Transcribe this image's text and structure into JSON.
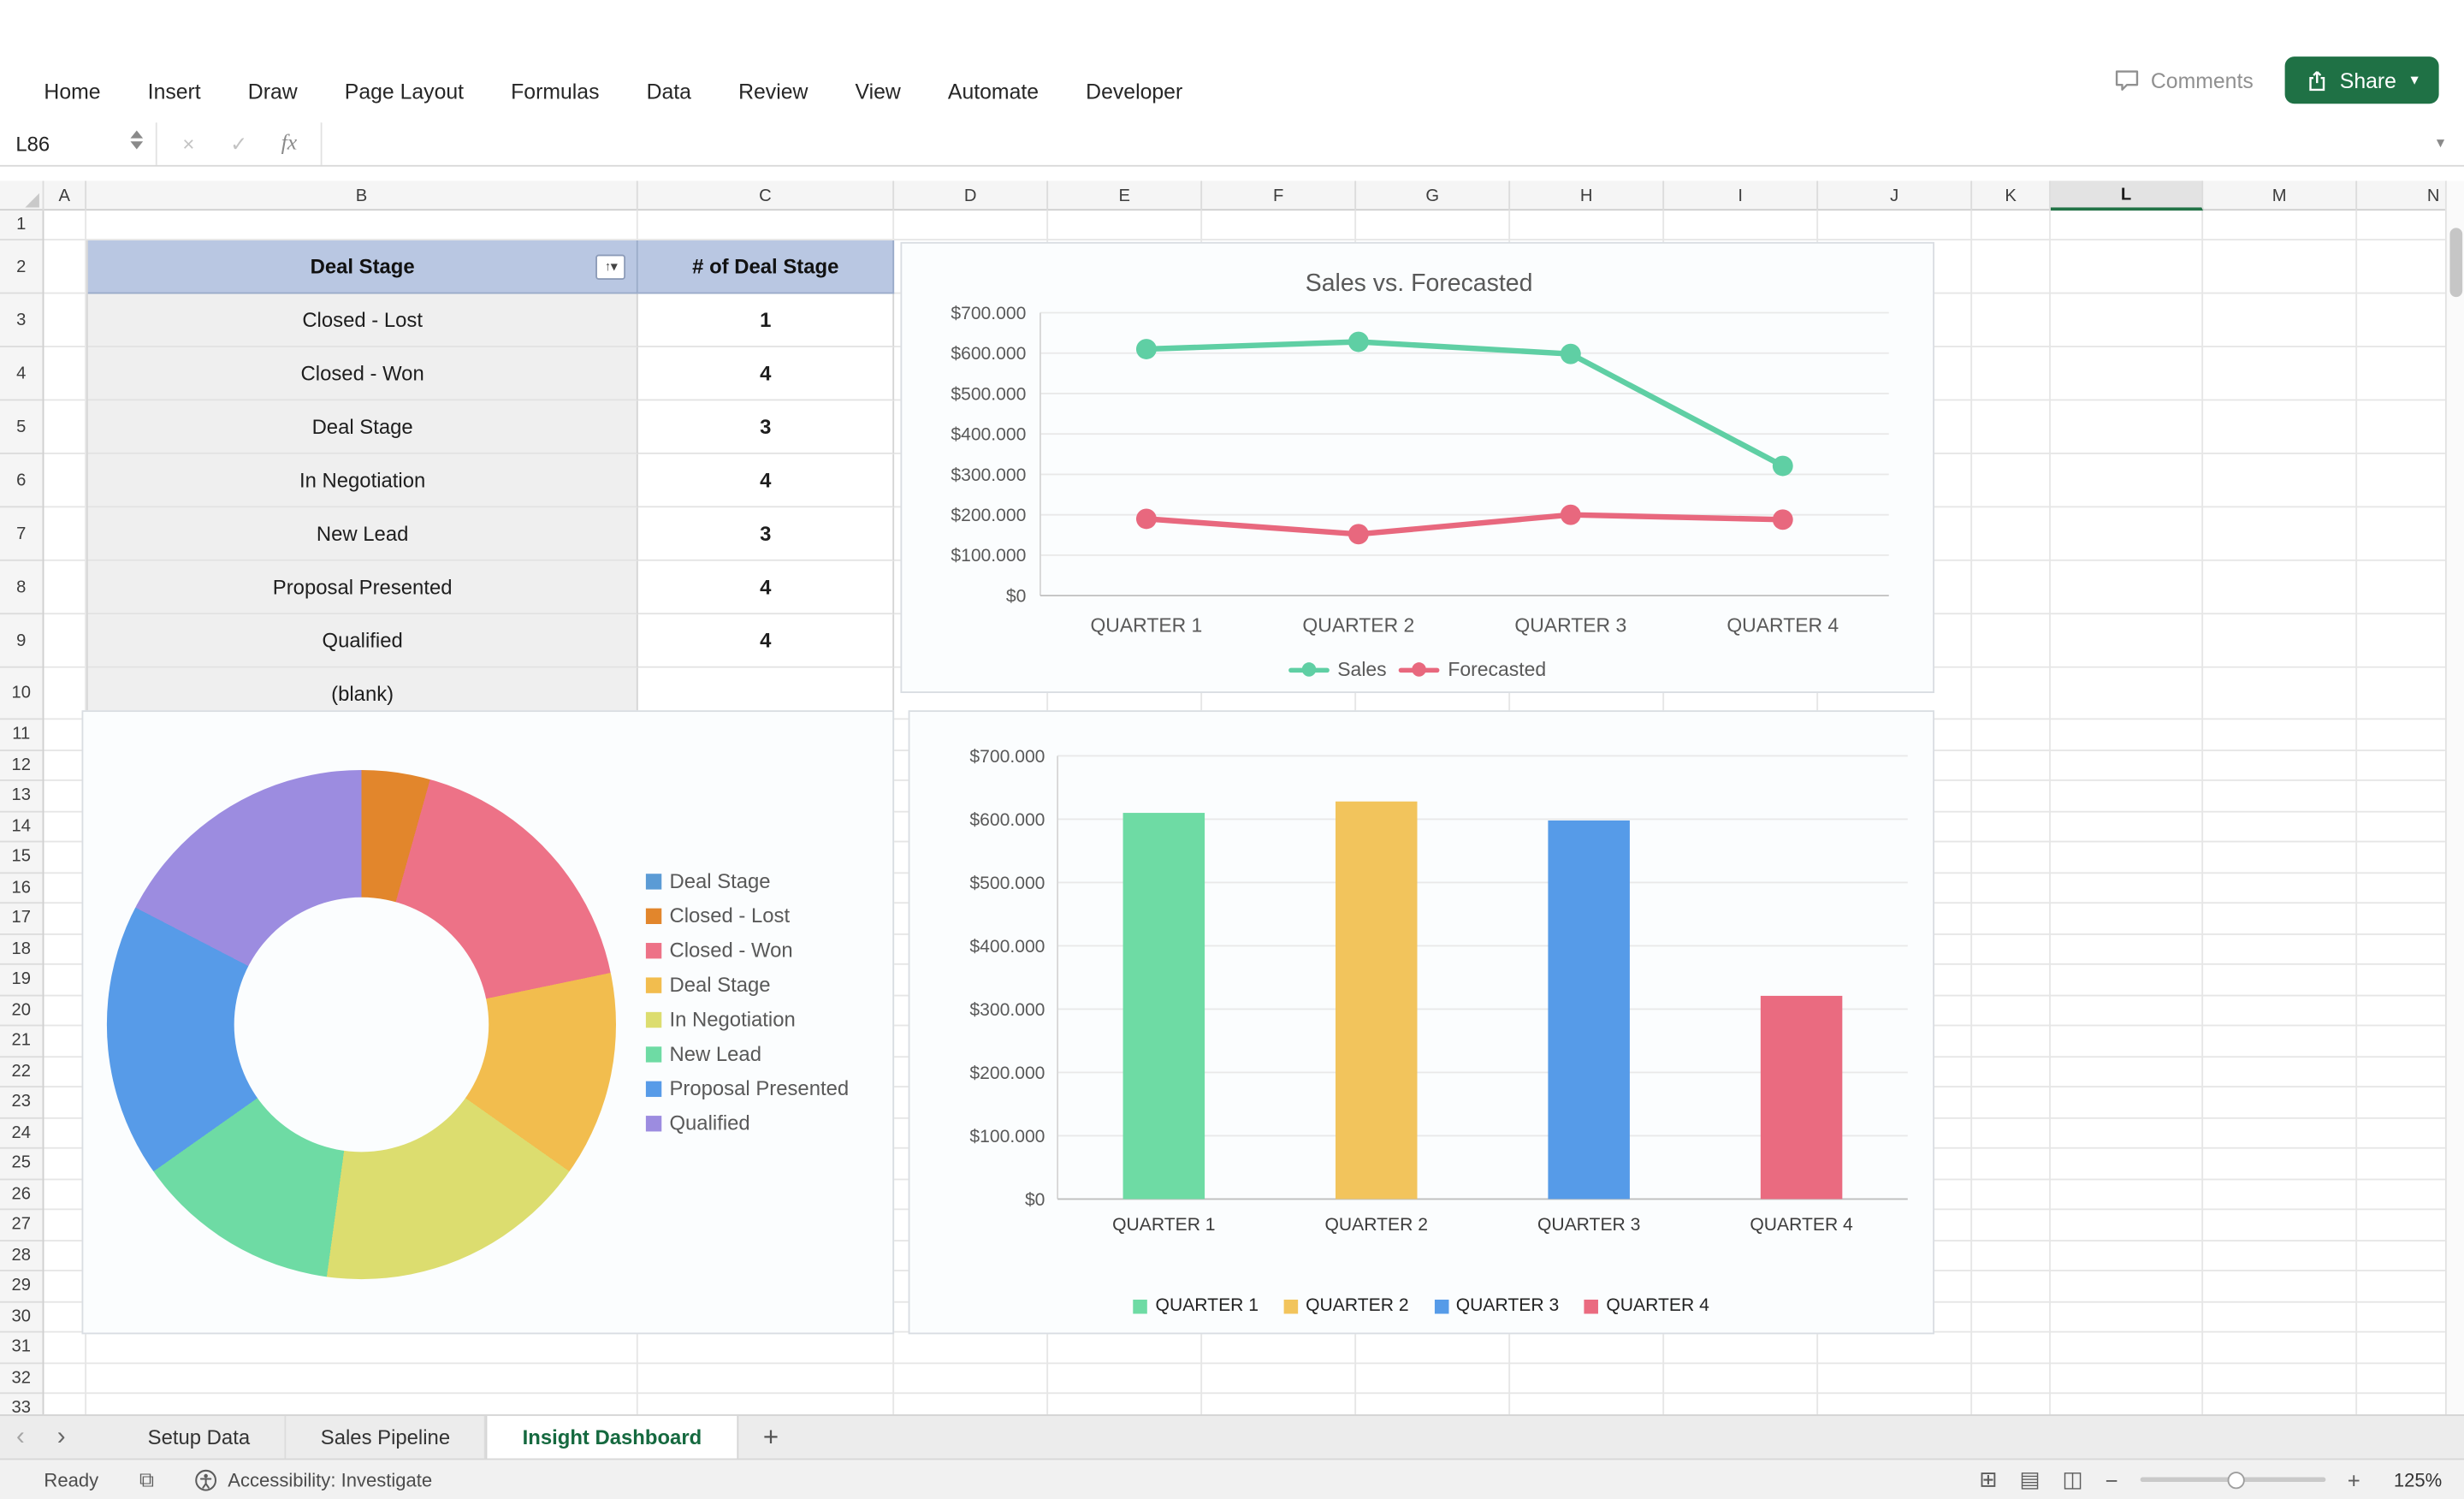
{
  "ribbon": {
    "tabs": [
      "Home",
      "Insert",
      "Draw",
      "Page Layout",
      "Formulas",
      "Data",
      "Review",
      "View",
      "Automate",
      "Developer"
    ],
    "comments_label": "Comments",
    "share_label": "Share"
  },
  "formula_bar": {
    "name_box": "L86",
    "fx_label": "fx"
  },
  "grid": {
    "columns": [
      "A",
      "B",
      "C",
      "D",
      "E",
      "F",
      "G",
      "H",
      "I",
      "J",
      "K",
      "L",
      "M",
      "N"
    ],
    "selected_column": "L",
    "row_count": 33
  },
  "pivot_table": {
    "headers": [
      "Deal Stage",
      "# of Deal Stage"
    ],
    "rows": [
      {
        "label": "Closed - Lost",
        "value": "1"
      },
      {
        "label": "Closed - Won",
        "value": "4"
      },
      {
        "label": "Deal Stage",
        "value": "3"
      },
      {
        "label": "In Negotiation",
        "value": "4"
      },
      {
        "label": "New Lead",
        "value": "3"
      },
      {
        "label": "Proposal Presented",
        "value": "4"
      },
      {
        "label": "Qualified",
        "value": "4"
      },
      {
        "label": "(blank)",
        "value": ""
      }
    ]
  },
  "chart_data": [
    {
      "type": "line",
      "title": "Sales vs. Forecasted",
      "categories": [
        "QUARTER 1",
        "QUARTER 2",
        "QUARTER 3",
        "QUARTER 4"
      ],
      "series": [
        {
          "name": "Sales",
          "color": "#5FCFA4",
          "values": [
            610000,
            628000,
            598000,
            321000
          ]
        },
        {
          "name": "Forecasted",
          "color": "#E8687E",
          "values": [
            190000,
            152000,
            200000,
            188000
          ]
        }
      ],
      "ylim": [
        0,
        700000
      ],
      "ytick_labels": [
        "$0",
        "$100.000",
        "$200.000",
        "$300.000",
        "$400.000",
        "$500.000",
        "$600.000",
        "$700.000"
      ],
      "legend_position": "bottom",
      "grid": true
    },
    {
      "type": "pie",
      "subtype": "donut",
      "title": "",
      "slices": [
        {
          "label": "Deal Stage",
          "value": 0,
          "color": "#5B9BD5"
        },
        {
          "label": "Closed - Lost",
          "value": 1,
          "color": "#E2862C"
        },
        {
          "label": "Closed - Won",
          "value": 4,
          "color": "#ED7287"
        },
        {
          "label": "Deal Stage",
          "value": 3,
          "color": "#F2BD4E"
        },
        {
          "label": "In Negotiation",
          "value": 4,
          "color": "#DCDD6F"
        },
        {
          "label": "New Lead",
          "value": 3,
          "color": "#6EDBA4"
        },
        {
          "label": "Proposal Presented",
          "value": 4,
          "color": "#579BE8"
        },
        {
          "label": "Qualified",
          "value": 4,
          "color": "#9C8CE0"
        }
      ],
      "total": 23,
      "legend_position": "right"
    },
    {
      "type": "bar",
      "title": "",
      "categories": [
        "QUARTER 1",
        "QUARTER 2",
        "QUARTER 3",
        "QUARTER 4"
      ],
      "values": [
        610000,
        628000,
        598000,
        321000
      ],
      "colors": [
        "#6EDBA4",
        "#F2C45C",
        "#569BE8",
        "#EA6B80"
      ],
      "ylim": [
        0,
        700000
      ],
      "ytick_labels": [
        "$0",
        "$100.000",
        "$200.000",
        "$300.000",
        "$400.000",
        "$500.000",
        "$600.000",
        "$700.000"
      ],
      "legend_position": "bottom",
      "grid": true
    }
  ],
  "sheet_tabs": {
    "items": [
      {
        "label": "Setup Data",
        "active": false
      },
      {
        "label": "Sales Pipeline",
        "active": false
      },
      {
        "label": "Insight Dashboard",
        "active": true
      }
    ],
    "add_label": "+"
  },
  "status_bar": {
    "ready_label": "Ready",
    "accessibility_label": "Accessibility: Investigate",
    "zoom_level": "125%"
  },
  "colors": {
    "excel_green": "#217346",
    "pivot_header": "#B9C7E2"
  }
}
